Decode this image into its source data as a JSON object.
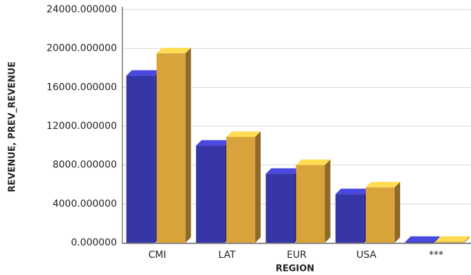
{
  "chart_data": {
    "type": "bar3d",
    "x_label": "REGION",
    "y_label": "REVENUE, PREV_REVENUE",
    "categories": [
      "CMI",
      "LAT",
      "EUR",
      "USA",
      "***"
    ],
    "series": [
      {
        "color": "#3636a6",
        "values": [
          17200,
          10000,
          7100,
          5000,
          100
        ]
      },
      {
        "color": "#d9a33c",
        "values": [
          19500,
          10900,
          8000,
          5700,
          100
        ]
      }
    ],
    "ylim": [
      0,
      24000
    ],
    "yticks": [
      {
        "value": 0,
        "label": "0.000000"
      },
      {
        "value": 4000,
        "label": "4000.000000"
      },
      {
        "value": 8000,
        "label": "8000.000000"
      },
      {
        "value": 12000,
        "label": "12000.000000"
      },
      {
        "value": 16000,
        "label": "16000.000000"
      },
      {
        "value": 20000,
        "label": "20000.000000"
      },
      {
        "value": 24000,
        "label": "24000.000000"
      }
    ],
    "grid": true
  }
}
